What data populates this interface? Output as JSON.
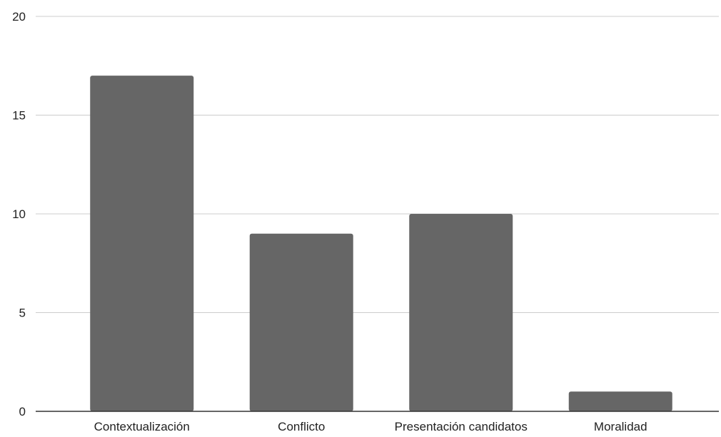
{
  "chart_data": {
    "type": "bar",
    "title": "",
    "xlabel": "",
    "ylabel": "",
    "categories": [
      "Contextualización",
      "Conflicto",
      "Presentación candidatos",
      "Moralidad"
    ],
    "values": [
      17,
      9,
      10,
      1
    ],
    "ylim": [
      0,
      20
    ],
    "yticks": [
      0,
      5,
      10,
      15,
      20
    ],
    "grid": true,
    "legend": "none",
    "colors": {
      "bar": "#666666",
      "grid": "#cccccc",
      "axis": "#333333"
    }
  }
}
